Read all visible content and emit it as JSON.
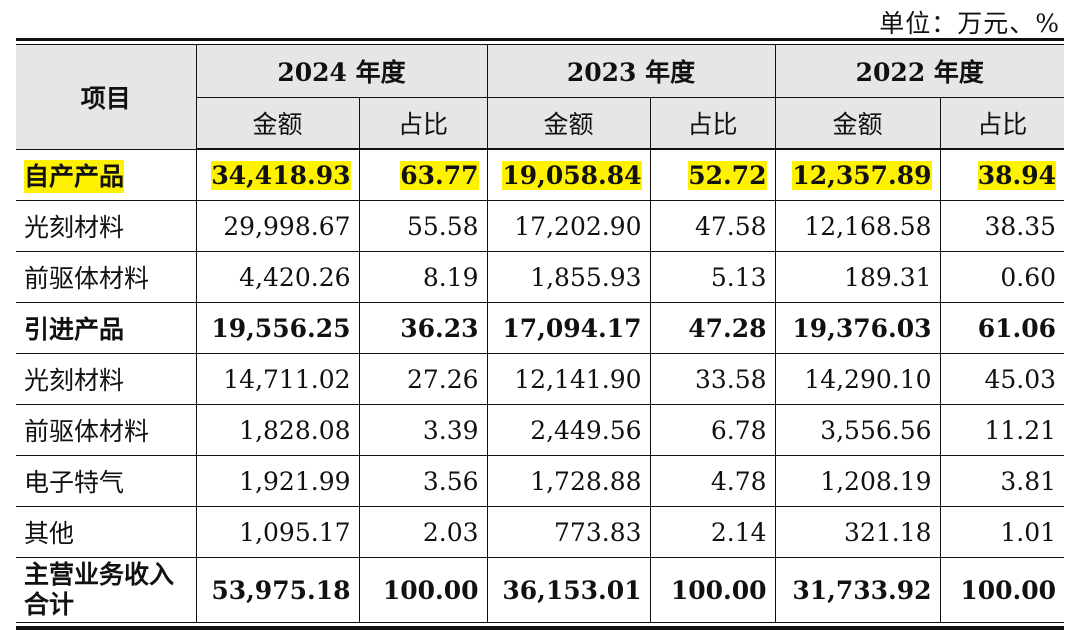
{
  "unit_note": "单位：万元、%",
  "header": {
    "item": "项目",
    "years": [
      "2024 年度",
      "2023 年度",
      "2022 年度"
    ],
    "amount": "金额",
    "ratio": "占比"
  },
  "highlight_color": "#fff200",
  "rows": [
    {
      "label": "自产产品",
      "bold": true,
      "highlight": true,
      "values": [
        "34,418.93",
        "63.77",
        "19,058.84",
        "52.72",
        "12,357.89",
        "38.94"
      ]
    },
    {
      "label": "光刻材料",
      "bold": false,
      "highlight": false,
      "values": [
        "29,998.67",
        "55.58",
        "17,202.90",
        "47.58",
        "12,168.58",
        "38.35"
      ]
    },
    {
      "label": "前驱体材料",
      "bold": false,
      "highlight": false,
      "values": [
        "4,420.26",
        "8.19",
        "1,855.93",
        "5.13",
        "189.31",
        "0.60"
      ]
    },
    {
      "label": "引进产品",
      "bold": true,
      "highlight": false,
      "values": [
        "19,556.25",
        "36.23",
        "17,094.17",
        "47.28",
        "19,376.03",
        "61.06"
      ]
    },
    {
      "label": "光刻材料",
      "bold": false,
      "highlight": false,
      "values": [
        "14,711.02",
        "27.26",
        "12,141.90",
        "33.58",
        "14,290.10",
        "45.03"
      ]
    },
    {
      "label": "前驱体材料",
      "bold": false,
      "highlight": false,
      "values": [
        "1,828.08",
        "3.39",
        "2,449.56",
        "6.78",
        "3,556.56",
        "11.21"
      ]
    },
    {
      "label": "电子特气",
      "bold": false,
      "highlight": false,
      "values": [
        "1,921.99",
        "3.56",
        "1,728.88",
        "4.78",
        "1,208.19",
        "3.81"
      ]
    },
    {
      "label": "其他",
      "bold": false,
      "highlight": false,
      "values": [
        "1,095.17",
        "2.03",
        "773.83",
        "2.14",
        "321.18",
        "1.01"
      ]
    },
    {
      "label": "主营业务收入合计",
      "bold": true,
      "highlight": false,
      "total": true,
      "values": [
        "53,975.18",
        "100.00",
        "36,153.01",
        "100.00",
        "31,733.92",
        "100.00"
      ]
    }
  ]
}
